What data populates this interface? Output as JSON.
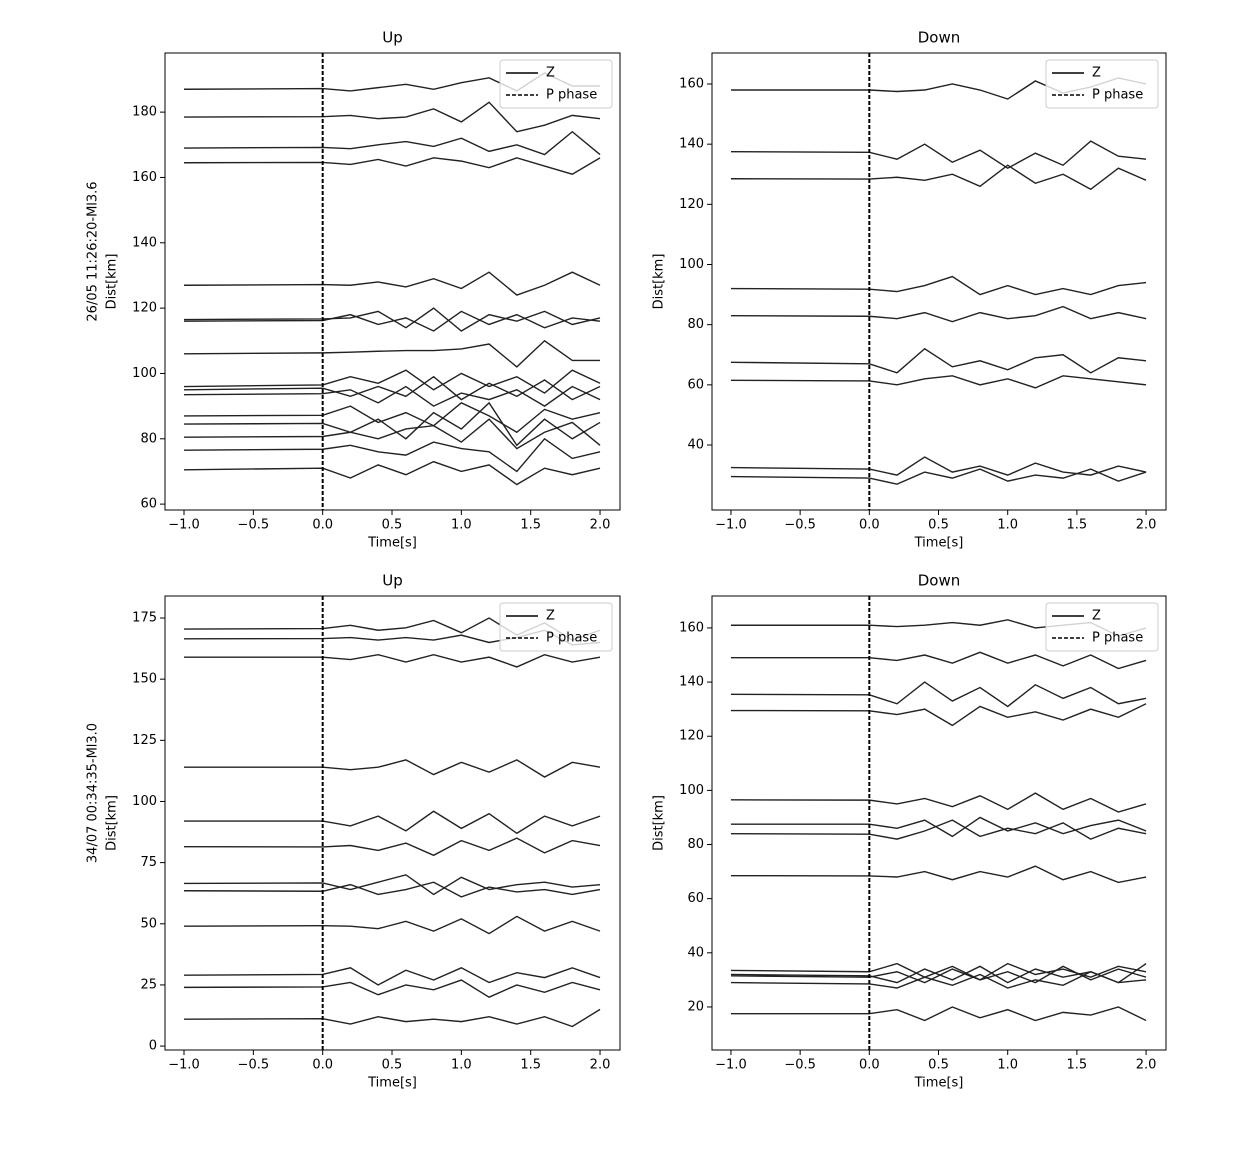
{
  "chart_data": [
    {
      "type": "line",
      "title": "Up",
      "xlabel": "Time[s]",
      "ylabel": "Dist[km]",
      "event_label": "26/05 11:26:20-Ml3.6",
      "legend": [
        "Z",
        "P phase"
      ],
      "legend_position": "upper right",
      "color": "#222222",
      "p_phase": 0,
      "x": [
        -1.0,
        0.0,
        0.2,
        0.4,
        0.6,
        0.8,
        1.0,
        1.2,
        1.4,
        1.6,
        1.8,
        2.0
      ],
      "xlim": [
        -1.137,
        2.144
      ],
      "xticks": [
        {
          "value": -1,
          "label": "−1.0"
        },
        {
          "value": -0.5,
          "label": "−0.5"
        },
        {
          "value": 0,
          "label": "0.0"
        },
        {
          "value": 0.5,
          "label": "0.5"
        },
        {
          "value": 1,
          "label": "1.0"
        },
        {
          "value": 1.5,
          "label": "1.5"
        },
        {
          "value": 2,
          "label": "2.0"
        }
      ],
      "ylim": [
        58.2,
        198.1
      ],
      "yticks": [
        60,
        80,
        100,
        120,
        140,
        160,
        180
      ],
      "series": [
        {
          "values": [
            187,
            187.2,
            186.5,
            187.5,
            188.5,
            187,
            189,
            190.5,
            186.5,
            192,
            188,
            188
          ]
        },
        {
          "values": [
            178.5,
            178.6,
            179,
            178,
            178.5,
            181,
            177,
            183,
            174,
            176,
            179,
            178
          ]
        },
        {
          "values": [
            169,
            169.2,
            168.8,
            170,
            171,
            169.5,
            172,
            168,
            170,
            167,
            174,
            167
          ]
        },
        {
          "values": [
            164.5,
            164.6,
            164,
            165.5,
            163.5,
            166,
            165,
            163,
            166,
            163.5,
            161,
            166
          ]
        },
        {
          "values": [
            127,
            127.2,
            127,
            128,
            126.5,
            129,
            126,
            131,
            124,
            127,
            131,
            127
          ]
        },
        {
          "values": [
            116.5,
            116.7,
            117,
            119,
            114,
            120,
            113,
            118,
            116,
            119,
            115,
            117
          ]
        },
        {
          "values": [
            116,
            116.2,
            118,
            115,
            117,
            113,
            119,
            115,
            118,
            114,
            117,
            116
          ]
        },
        {
          "values": [
            106,
            106.3,
            106.5,
            106.8,
            107,
            107,
            107.5,
            109,
            102,
            110,
            104,
            104
          ]
        },
        {
          "values": [
            96,
            96.5,
            99,
            97,
            101,
            95,
            100,
            96,
            99,
            94,
            101,
            97
          ]
        },
        {
          "values": [
            95,
            95.5,
            93,
            96,
            93,
            99,
            92,
            97,
            93,
            98,
            92,
            96
          ]
        },
        {
          "values": [
            93.5,
            93.8,
            95,
            91,
            96,
            90,
            94,
            92,
            95,
            90,
            96,
            92
          ]
        },
        {
          "values": [
            87,
            87.2,
            90,
            85,
            88,
            84,
            91,
            87,
            82,
            89,
            86,
            88
          ]
        },
        {
          "values": [
            84.5,
            84.7,
            82,
            86,
            80,
            88,
            83,
            91,
            78,
            86,
            80,
            85
          ]
        },
        {
          "values": [
            80.5,
            80.7,
            82,
            80,
            83,
            84,
            79,
            86,
            77,
            82,
            85,
            78
          ]
        },
        {
          "values": [
            76.5,
            76.8,
            78,
            76,
            75,
            79,
            77,
            76,
            70,
            80,
            74,
            76
          ]
        },
        {
          "values": [
            70.5,
            71,
            68,
            72,
            69,
            73,
            70,
            72,
            66,
            71,
            69,
            71
          ]
        }
      ]
    },
    {
      "type": "line",
      "title": "Down",
      "xlabel": "Time[s]",
      "ylabel": "Dist[km]",
      "legend": [
        "Z",
        "P phase"
      ],
      "legend_position": "upper right",
      "color": "#222222",
      "p_phase": 0,
      "x": [
        -1.0,
        0.0,
        0.2,
        0.4,
        0.6,
        0.8,
        1.0,
        1.2,
        1.4,
        1.6,
        1.8,
        2.0
      ],
      "xlim": [
        -1.137,
        2.144
      ],
      "xticks": [
        {
          "value": -1,
          "label": "−1.0"
        },
        {
          "value": -0.5,
          "label": "−0.5"
        },
        {
          "value": 0,
          "label": "0.0"
        },
        {
          "value": 0.5,
          "label": "0.5"
        },
        {
          "value": 1,
          "label": "1.0"
        },
        {
          "value": 1.5,
          "label": "1.5"
        },
        {
          "value": 2,
          "label": "2.0"
        }
      ],
      "ylim": [
        18.4,
        170.3
      ],
      "yticks": [
        40,
        60,
        80,
        100,
        120,
        140,
        160
      ],
      "series": [
        {
          "values": [
            158,
            158,
            157.5,
            158,
            160,
            158,
            155,
            161,
            157,
            159,
            162,
            160
          ]
        },
        {
          "values": [
            137.5,
            137.3,
            135,
            140,
            134,
            138,
            132,
            137,
            133,
            141,
            136,
            135
          ]
        },
        {
          "values": [
            128.5,
            128.4,
            129,
            128,
            130,
            126,
            133,
            127,
            130,
            125,
            132,
            128
          ]
        },
        {
          "values": [
            92,
            91.8,
            91,
            93,
            96,
            90,
            93,
            90,
            92,
            90,
            93,
            94
          ]
        },
        {
          "values": [
            83,
            82.8,
            82,
            84,
            81,
            84,
            82,
            83,
            86,
            82,
            84,
            82
          ]
        },
        {
          "values": [
            67.5,
            67,
            64,
            72,
            66,
            68,
            65,
            69,
            70,
            64,
            69,
            68
          ]
        },
        {
          "values": [
            61.5,
            61.3,
            60,
            62,
            63,
            60,
            62,
            59,
            63,
            62,
            61,
            60
          ]
        },
        {
          "values": [
            32.5,
            32,
            30,
            36,
            31,
            33,
            30,
            34,
            31,
            30,
            33,
            31
          ]
        },
        {
          "values": [
            29.5,
            29,
            27,
            31,
            29,
            32,
            28,
            30,
            29,
            32,
            28,
            31
          ]
        }
      ]
    },
    {
      "type": "line",
      "title": "Up",
      "xlabel": "Time[s]",
      "ylabel": "Dist[km]",
      "event_label": "34/07 00:34:35-Ml3.0",
      "legend": [
        "Z",
        "P phase"
      ],
      "legend_position": "upper right",
      "color": "#222222",
      "p_phase": 0,
      "x": [
        -1.0,
        0.0,
        0.2,
        0.4,
        0.6,
        0.8,
        1.0,
        1.2,
        1.4,
        1.6,
        1.8,
        2.0
      ],
      "xlim": [
        -1.137,
        2.144
      ],
      "xticks": [
        {
          "value": -1,
          "label": "−1.0"
        },
        {
          "value": -0.5,
          "label": "−0.5"
        },
        {
          "value": 0,
          "label": "0.0"
        },
        {
          "value": 0.5,
          "label": "0.5"
        },
        {
          "value": 1,
          "label": "1.0"
        },
        {
          "value": 1.5,
          "label": "1.5"
        },
        {
          "value": 2,
          "label": "2.0"
        }
      ],
      "ylim": [
        -1.6,
        184.0
      ],
      "yticks": [
        0,
        25,
        50,
        75,
        100,
        125,
        150,
        175
      ],
      "series": [
        {
          "values": [
            170.5,
            170.7,
            172,
            170,
            171,
            174,
            169,
            175,
            168,
            173,
            166,
            170
          ]
        },
        {
          "values": [
            166.5,
            166.6,
            167,
            166,
            167,
            166,
            168,
            165,
            167,
            170,
            164,
            165
          ]
        },
        {
          "values": [
            159,
            159,
            158,
            160,
            157,
            160,
            157,
            159,
            155,
            160,
            157,
            159
          ]
        },
        {
          "values": [
            114,
            114,
            113,
            114,
            117,
            111,
            116,
            112,
            117,
            110,
            116,
            114
          ]
        },
        {
          "values": [
            92,
            92,
            90,
            94,
            88,
            96,
            89,
            95,
            87,
            94,
            90,
            94
          ]
        },
        {
          "values": [
            81.5,
            81.4,
            82,
            80,
            83,
            78,
            84,
            80,
            85,
            79,
            84,
            82
          ]
        },
        {
          "values": [
            66.5,
            66.7,
            64,
            67,
            70,
            62,
            69,
            64,
            66,
            67,
            65,
            66
          ]
        },
        {
          "values": [
            63.5,
            63.3,
            66,
            62,
            64,
            67,
            61,
            65,
            63,
            64,
            62,
            64
          ]
        },
        {
          "values": [
            49,
            49.2,
            49,
            48,
            51,
            47,
            52,
            46,
            53,
            47,
            51,
            47
          ]
        },
        {
          "values": [
            29,
            29.3,
            32,
            25,
            31,
            27,
            32,
            26,
            30,
            28,
            32,
            28
          ]
        },
        {
          "values": [
            24,
            24.2,
            26,
            21,
            25,
            23,
            27,
            20,
            25,
            22,
            26,
            23
          ]
        },
        {
          "values": [
            11,
            11.2,
            9,
            12,
            10,
            11,
            10,
            12,
            9,
            12,
            8,
            15
          ]
        }
      ]
    },
    {
      "type": "line",
      "title": "Down",
      "xlabel": "Time[s]",
      "ylabel": "Dist[km]",
      "legend": [
        "Z",
        "P phase"
      ],
      "legend_position": "upper right",
      "color": "#222222",
      "p_phase": 0,
      "x": [
        -1.0,
        0.0,
        0.2,
        0.4,
        0.6,
        0.8,
        1.0,
        1.2,
        1.4,
        1.6,
        1.8,
        2.0
      ],
      "xlim": [
        -1.137,
        2.144
      ],
      "xticks": [
        {
          "value": -1,
          "label": "−1.0"
        },
        {
          "value": -0.5,
          "label": "−0.5"
        },
        {
          "value": 0,
          "label": "0.0"
        },
        {
          "value": 0.5,
          "label": "0.5"
        },
        {
          "value": 1,
          "label": "1.0"
        },
        {
          "value": 1.5,
          "label": "1.5"
        },
        {
          "value": 2,
          "label": "2.0"
        }
      ],
      "ylim": [
        4.1,
        171.8
      ],
      "yticks": [
        20,
        40,
        60,
        80,
        100,
        120,
        140,
        160
      ],
      "series": [
        {
          "values": [
            161,
            161,
            160.5,
            161,
            162,
            161,
            163,
            160,
            161,
            162,
            157,
            160
          ]
        },
        {
          "values": [
            149,
            149,
            148,
            150,
            147,
            151,
            147,
            150,
            146,
            150,
            145,
            148
          ]
        },
        {
          "values": [
            135.5,
            135.3,
            132,
            140,
            133,
            138,
            131,
            139,
            134,
            138,
            132,
            134
          ]
        },
        {
          "values": [
            129.5,
            129.4,
            128,
            130,
            124,
            131,
            127,
            129,
            126,
            130,
            127,
            132
          ]
        },
        {
          "values": [
            96.5,
            96.4,
            95,
            97,
            94,
            98,
            93,
            99,
            93,
            97,
            92,
            95
          ]
        },
        {
          "values": [
            87.5,
            87.5,
            86,
            89,
            83,
            90,
            85,
            88,
            84,
            87,
            89,
            85
          ]
        },
        {
          "values": [
            84,
            83.8,
            82,
            85,
            89,
            83,
            86,
            84,
            88,
            82,
            86,
            84
          ]
        },
        {
          "values": [
            68.5,
            68.4,
            68,
            70,
            67,
            70,
            68,
            72,
            67,
            70,
            66,
            68
          ]
        },
        {
          "values": [
            33.5,
            33,
            36,
            31,
            35,
            30,
            36,
            32,
            34,
            31,
            35,
            33
          ]
        },
        {
          "values": [
            32,
            31.5,
            29,
            34,
            30,
            35,
            29,
            34,
            31,
            33,
            29,
            36
          ]
        },
        {
          "values": [
            31.5,
            31,
            33,
            29,
            34,
            30,
            33,
            29,
            35,
            30,
            34,
            31
          ]
        },
        {
          "values": [
            29,
            28.5,
            27,
            31,
            28,
            32,
            27,
            30,
            28,
            33,
            29,
            30
          ]
        },
        {
          "values": [
            17.5,
            17.5,
            19,
            15,
            20,
            16,
            19,
            15,
            18,
            17,
            20,
            15
          ]
        }
      ]
    }
  ]
}
